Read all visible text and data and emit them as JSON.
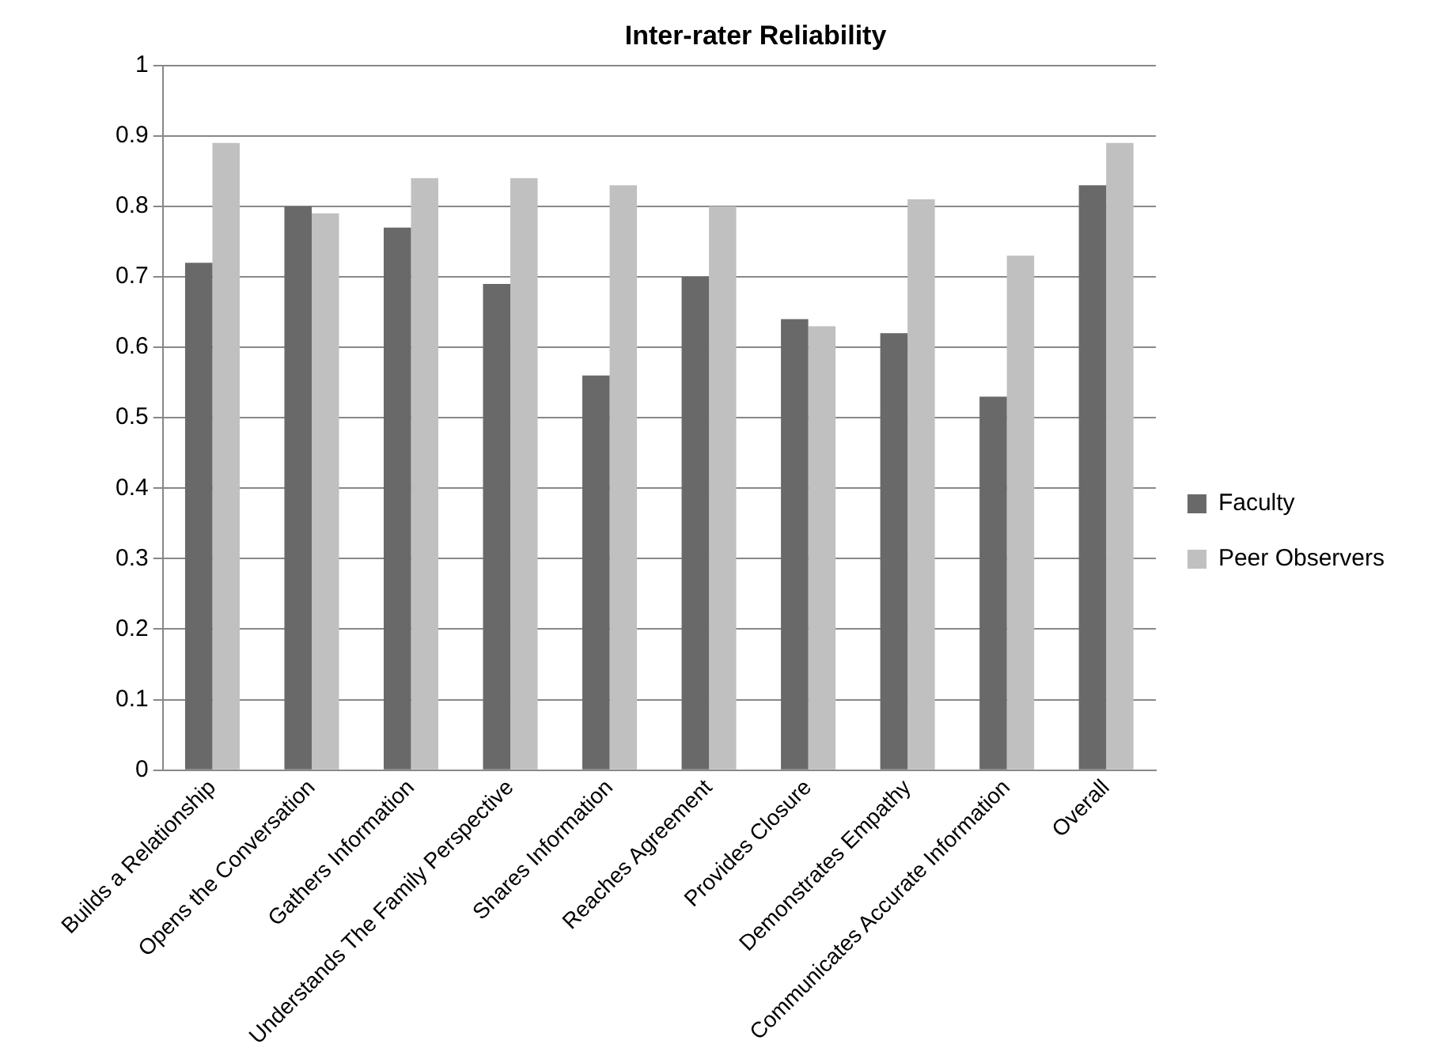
{
  "chart_data": {
    "type": "bar",
    "title": "Inter-rater Reliability",
    "categories": [
      "Builds a Relationship",
      "Opens the Conversation",
      "Gathers Information",
      "Understands The Family Perspective",
      "Shares Information",
      "Reaches Agreement",
      "Provides Closure",
      "Demonstrates Empathy",
      "Communicates Accurate Information",
      "Overall"
    ],
    "series": [
      {
        "name": "Faculty",
        "color": "#696969",
        "values": [
          0.72,
          0.8,
          0.77,
          0.69,
          0.56,
          0.7,
          0.64,
          0.62,
          0.53,
          0.83
        ]
      },
      {
        "name": "Peer Observers",
        "color": "#c0c0c0",
        "values": [
          0.89,
          0.79,
          0.84,
          0.84,
          0.83,
          0.8,
          0.63,
          0.81,
          0.73,
          0.89
        ]
      }
    ],
    "ylim": [
      0,
      1
    ],
    "yticks": [
      0,
      0.1,
      0.2,
      0.3,
      0.4,
      0.5,
      0.6,
      0.7,
      0.8,
      0.9,
      1
    ],
    "grid": "y",
    "legend": "right"
  }
}
